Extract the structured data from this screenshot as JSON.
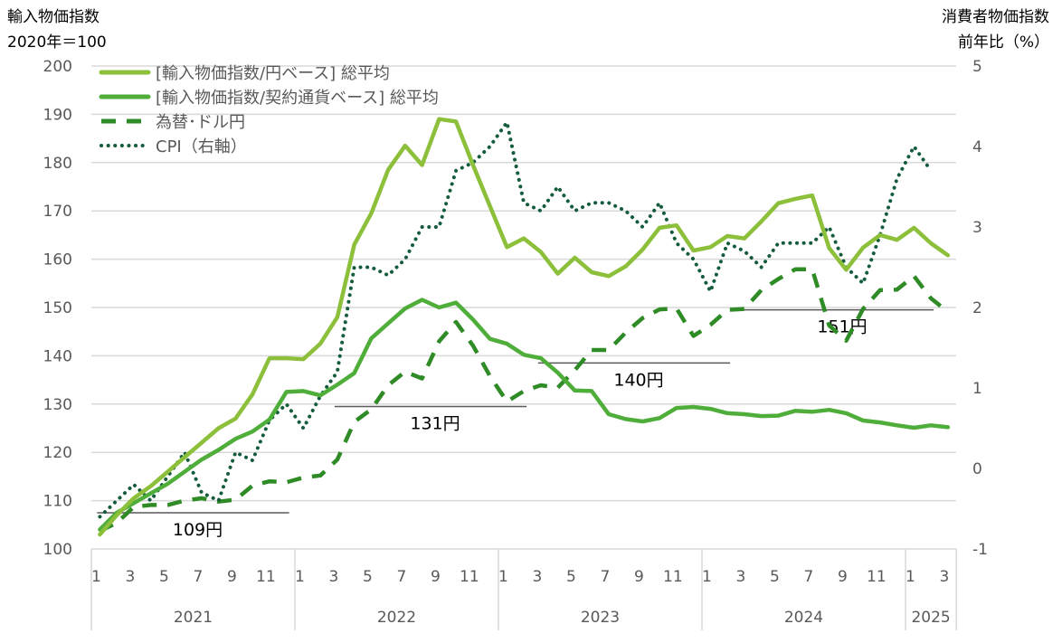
{
  "chart_data": {
    "type": "line",
    "left_axis": {
      "title_line1": "輸入物価指数",
      "title_line2": "2020年＝100",
      "ylim": [
        100,
        200
      ],
      "ticks": [
        "200",
        "190",
        "180",
        "170",
        "160",
        "150",
        "140",
        "130",
        "120",
        "110",
        "100"
      ]
    },
    "right_axis": {
      "title_line1": "消費者物価指数",
      "title_line2": "前年比（%）",
      "ylim": [
        -1,
        5
      ],
      "ticks": [
        "5",
        "4",
        "3",
        "2",
        "1",
        "0",
        "-1"
      ]
    },
    "month_ticks": [
      "1",
      "3",
      "5",
      "7",
      "9",
      "11"
    ],
    "month_ticks_2025": [
      "1",
      "3"
    ],
    "years": [
      "2021",
      "2022",
      "2023",
      "2024",
      "2025"
    ],
    "grid": true,
    "legend_position": "top-left",
    "series": [
      {
        "name": "[輸入物価指数/円ベース] 総平均",
        "axis": "left",
        "style": "solid",
        "color": "#8cbf3a",
        "values": [
          103,
          107,
          110.5,
          113,
          116,
          119,
          122,
          125,
          127,
          132,
          139.5,
          139.5,
          139.3,
          142.5,
          148,
          163,
          169.5,
          178.5,
          183.5,
          179.5,
          189,
          188.5,
          179.5,
          171,
          162.5,
          164.3,
          161.5,
          157,
          160.3,
          157.3,
          156.5,
          158.5,
          162,
          166.5,
          167,
          161.8,
          162.5,
          164.8,
          164.3,
          167.8,
          171.6,
          172.5,
          173.2,
          162.3,
          157.8,
          162.4,
          165,
          164,
          166.5,
          163.3,
          160.8
        ]
      },
      {
        "name": "[輸入物価指数/契約通貨ベース] 総平均",
        "axis": "left",
        "style": "solid",
        "color": "#4fae3a",
        "values": [
          104,
          107.5,
          109.5,
          111.5,
          113.5,
          116,
          118.5,
          120.5,
          122.8,
          124.3,
          126.8,
          132.5,
          132.7,
          131.8,
          134,
          136.4,
          143.6,
          146.7,
          149.8,
          151.6,
          150,
          151,
          147.5,
          143.5,
          142.5,
          140.2,
          139.5,
          136.5,
          132.8,
          132.7,
          127.9,
          126.9,
          126.4,
          127.1,
          129.2,
          129.4,
          129,
          128.1,
          127.9,
          127.5,
          127.6,
          128.6,
          128.4,
          128.8,
          128.1,
          126.6,
          126.2,
          125.6,
          125.1,
          125.6,
          125.2
        ]
      },
      {
        "name": "為替･ドル円",
        "axis": "left",
        "style": "dashed",
        "color": "#2e8b25",
        "values": [
          103.7,
          105.4,
          108.7,
          109.1,
          109.1,
          110,
          110.5,
          109.8,
          110.2,
          113.1,
          114,
          113.8,
          114.8,
          115.2,
          118.5,
          126.3,
          128.9,
          133.9,
          136.7,
          135.3,
          143,
          147,
          142.1,
          135.8,
          130.5,
          132.7,
          133.9,
          133.4,
          137,
          141.2,
          141.2,
          144.8,
          147.8,
          149.6,
          149.8,
          144.1,
          146.4,
          149.5,
          149.7,
          153.6,
          155.9,
          157.9,
          157.9,
          146.3,
          143.1,
          149.7,
          153.6,
          153.7,
          156.5,
          151.9,
          149.1
        ]
      },
      {
        "name": "CPI（右軸）",
        "axis": "right",
        "style": "dotted",
        "color": "#145c3c",
        "values": [
          -0.6,
          -0.4,
          -0.2,
          -0.4,
          -0.1,
          0.2,
          -0.3,
          -0.4,
          0.2,
          0.1,
          0.6,
          0.8,
          0.5,
          0.9,
          1.2,
          2.5,
          2.5,
          2.4,
          2.6,
          3.0,
          3.0,
          3.7,
          3.8,
          4.0,
          4.3,
          3.3,
          3.2,
          3.5,
          3.2,
          3.3,
          3.3,
          3.2,
          3.0,
          3.3,
          2.8,
          2.6,
          2.2,
          2.8,
          2.7,
          2.5,
          2.8,
          2.8,
          2.8,
          3.0,
          2.5,
          2.3,
          2.9,
          3.6,
          4.0,
          3.7
        ]
      }
    ],
    "annotations": [
      {
        "label": "109円",
        "value": 109,
        "start_month": 0,
        "end_month": 11
      },
      {
        "label": "131円",
        "value": 131,
        "start_month": 14,
        "end_month": 25
      },
      {
        "label": "140円",
        "value": 140,
        "start_month": 26,
        "end_month": 37
      },
      {
        "label": "151円",
        "value": 151,
        "start_month": 38,
        "end_month": 49
      }
    ]
  }
}
